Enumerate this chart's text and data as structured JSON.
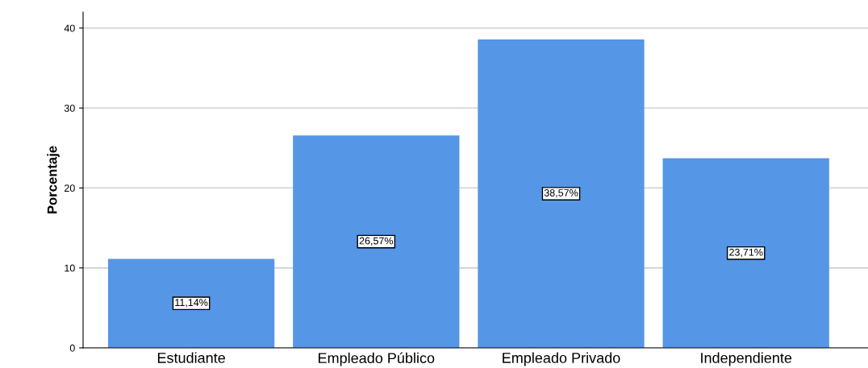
{
  "chart_data": {
    "type": "bar",
    "ylabel": "Porcentaje",
    "categories": [
      "Estudiante",
      "Empleado Público",
      "Empleado Privado",
      "Independiente"
    ],
    "values": [
      11.14,
      26.57,
      38.57,
      23.71
    ],
    "value_labels": [
      "11,14%",
      "26,57%",
      "38,57%",
      "23,71%"
    ],
    "color": "#5596e6",
    "ylim": [
      0,
      42
    ],
    "yticks": [
      0,
      10,
      20,
      30,
      40
    ],
    "grid": "y"
  }
}
